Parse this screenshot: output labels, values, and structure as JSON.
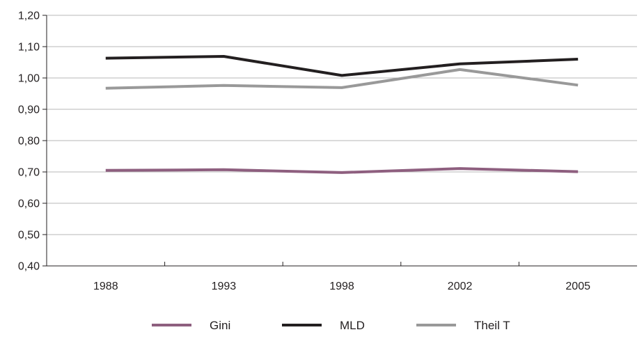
{
  "chart_data": {
    "type": "line",
    "title": "",
    "xlabel": "",
    "ylabel": "",
    "categories": [
      "1988",
      "1993",
      "1998",
      "2002",
      "2005"
    ],
    "ylim": [
      0.4,
      1.2
    ],
    "yticks": [
      "0,40",
      "0,50",
      "0,60",
      "0,70",
      "0,80",
      "0,90",
      "1,00",
      "1,10",
      "1,20"
    ],
    "grid": true,
    "legend_position": "bottom",
    "series": [
      {
        "name": "Gini",
        "color": "#8e5f7f",
        "values": [
          0.705,
          0.707,
          0.698,
          0.711,
          0.701
        ]
      },
      {
        "name": "MLD",
        "color": "#231f20",
        "values": [
          1.063,
          1.069,
          1.008,
          1.045,
          1.06
        ]
      },
      {
        "name": "Theil T",
        "color": "#999999",
        "values": [
          0.967,
          0.976,
          0.969,
          1.027,
          0.977
        ]
      }
    ]
  }
}
